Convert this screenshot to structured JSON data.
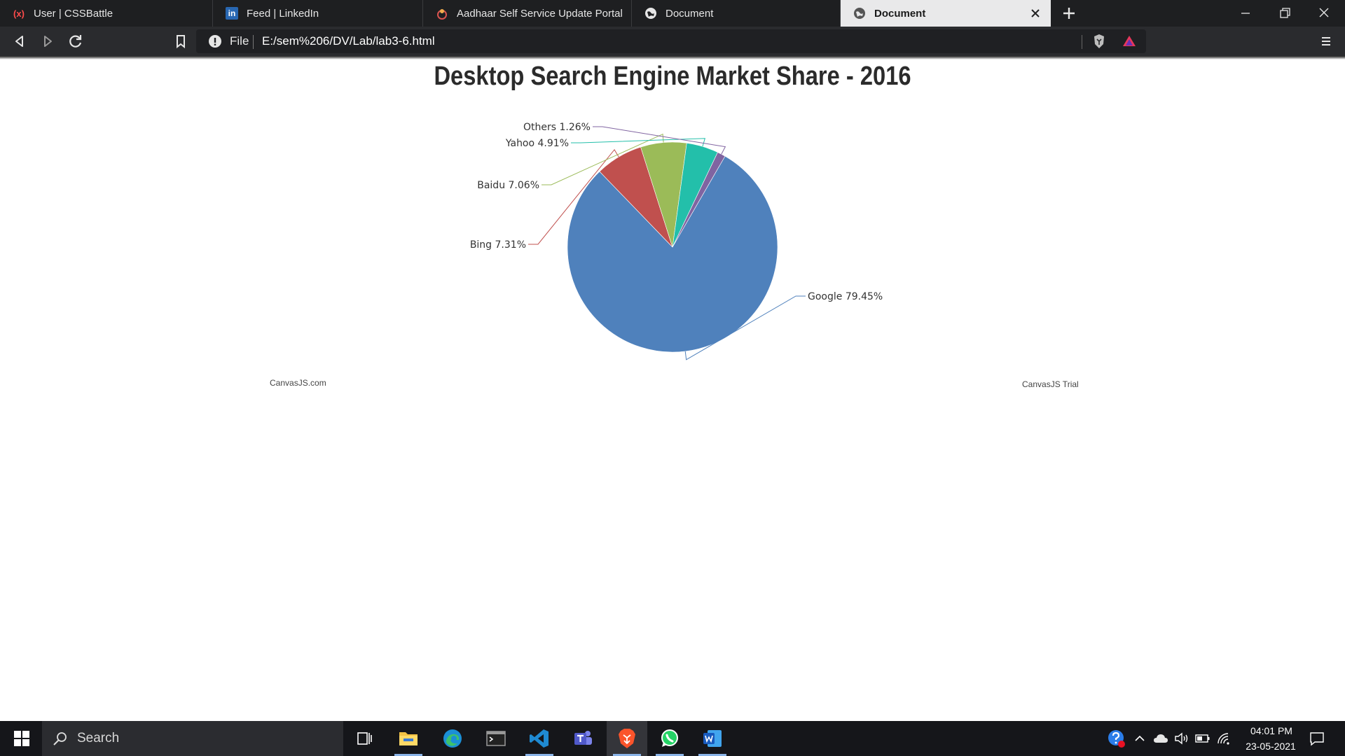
{
  "browser": {
    "tabs": [
      {
        "title": "User | CSSBattle",
        "icon": "cssbattle-icon"
      },
      {
        "title": "Feed | LinkedIn",
        "icon": "linkedin-icon"
      },
      {
        "title": "Aadhaar Self Service Update Portal",
        "icon": "aadhaar-icon"
      },
      {
        "title": "Document",
        "icon": "globe-icon"
      },
      {
        "title": "Document",
        "icon": "globe-icon",
        "active": true
      }
    ],
    "address_bar": {
      "scheme_label": "File",
      "url": "E:/sem%206/DV/Lab/lab3-6.html"
    }
  },
  "page": {
    "credit_left": "CanvasJS.com",
    "credit_right": "CanvasJS Trial"
  },
  "chart_data": {
    "type": "pie",
    "title": "Desktop Search Engine Market Share - 2016",
    "slices": [
      {
        "label": "Google",
        "value": 79.45,
        "display": "Google 79.45%",
        "color": "#4f81bc"
      },
      {
        "label": "Bing",
        "value": 7.31,
        "display": "Bing 7.31%",
        "color": "#c0504e"
      },
      {
        "label": "Baidu",
        "value": 7.06,
        "display": "Baidu 7.06%",
        "color": "#9bbb58"
      },
      {
        "label": "Yahoo",
        "value": 4.91,
        "display": "Yahoo 4.91%",
        "color": "#23bfaa"
      },
      {
        "label": "Others",
        "value": 1.26,
        "display": "Others 1.26%",
        "color": "#8064a1"
      }
    ],
    "start_angle_deg": -60,
    "legend": "none",
    "index_label_placement": "outside"
  },
  "taskbar": {
    "search_placeholder": "Search",
    "apps": [
      "task-view",
      "file-explorer",
      "edge",
      "terminal",
      "vscode",
      "teams",
      "brave",
      "whatsapp",
      "word"
    ],
    "clock_time": "04:01 PM",
    "clock_date": "23-05-2021"
  }
}
